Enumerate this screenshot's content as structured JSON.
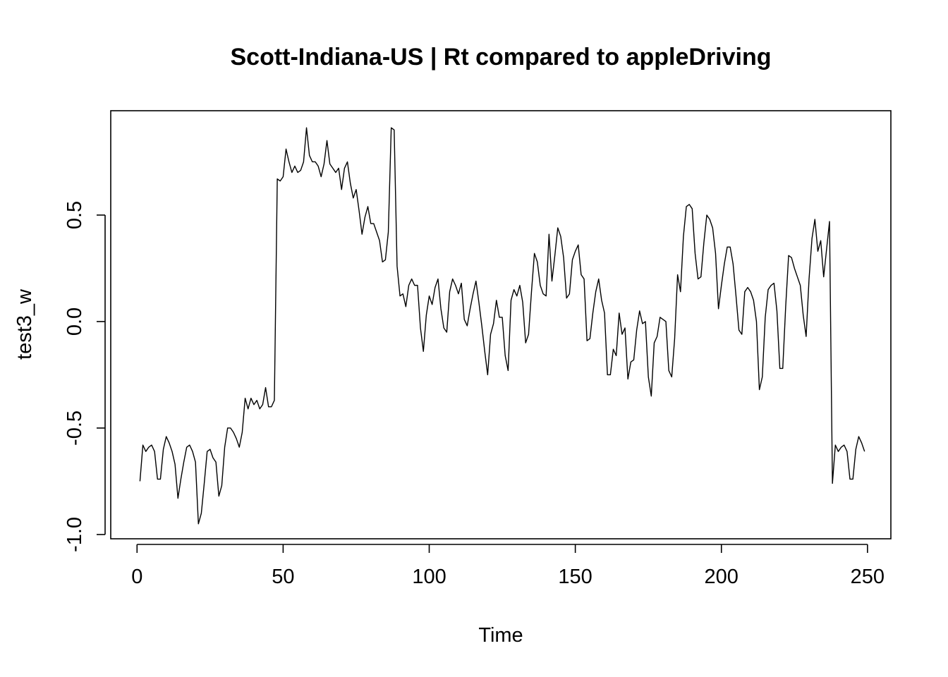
{
  "chart_data": {
    "type": "line",
    "title": "Scott-Indiana-US | Rt compared to appleDriving",
    "xlabel": "Time",
    "ylabel": "test3_w",
    "xlim": [
      -9,
      258
    ],
    "ylim": [
      -1.02,
      0.99
    ],
    "x_ticks": [
      0,
      50,
      100,
      150,
      200,
      250
    ],
    "x_tick_labels": [
      "0",
      "50",
      "100",
      "150",
      "200",
      "250"
    ],
    "y_ticks": [
      -1.0,
      -0.5,
      0.0,
      0.5
    ],
    "y_tick_labels": [
      "-1.0",
      "-0.5",
      "0.0",
      "0.5"
    ],
    "grid": false,
    "legend": "none",
    "line_color": "#000000",
    "series": [
      {
        "x_start": 1,
        "x_step": 1,
        "values": [
          -0.75,
          -0.58,
          -0.61,
          -0.59,
          -0.58,
          -0.61,
          -0.74,
          -0.74,
          -0.6,
          -0.54,
          -0.57,
          -0.61,
          -0.67,
          -0.83,
          -0.74,
          -0.66,
          -0.59,
          -0.58,
          -0.61,
          -0.66,
          -0.95,
          -0.9,
          -0.76,
          -0.61,
          -0.6,
          -0.64,
          -0.66,
          -0.82,
          -0.77,
          -0.59,
          -0.5,
          -0.5,
          -0.52,
          -0.55,
          -0.59,
          -0.52,
          -0.36,
          -0.41,
          -0.36,
          -0.39,
          -0.37,
          -0.41,
          -0.39,
          -0.31,
          -0.4,
          -0.4,
          -0.37,
          0.67,
          0.66,
          0.68,
          0.81,
          0.75,
          0.7,
          0.73,
          0.7,
          0.71,
          0.75,
          0.91,
          0.78,
          0.75,
          0.75,
          0.73,
          0.68,
          0.74,
          0.85,
          0.74,
          0.72,
          0.7,
          0.72,
          0.62,
          0.72,
          0.75,
          0.65,
          0.58,
          0.62,
          0.52,
          0.41,
          0.49,
          0.54,
          0.46,
          0.46,
          0.42,
          0.38,
          0.28,
          0.29,
          0.42,
          0.91,
          0.9,
          0.26,
          0.12,
          0.13,
          0.07,
          0.17,
          0.2,
          0.17,
          0.17,
          -0.03,
          -0.14,
          0.03,
          0.12,
          0.08,
          0.16,
          0.2,
          0.06,
          -0.03,
          -0.05,
          0.14,
          0.2,
          0.17,
          0.13,
          0.18,
          0.01,
          -0.02,
          0.06,
          0.13,
          0.19,
          0.09,
          -0.02,
          -0.14,
          -0.25,
          -0.06,
          -0.01,
          0.1,
          0.02,
          0.02,
          -0.16,
          -0.23,
          0.1,
          0.15,
          0.12,
          0.17,
          0.09,
          -0.1,
          -0.06,
          0.14,
          0.32,
          0.28,
          0.17,
          0.13,
          0.12,
          0.41,
          0.19,
          0.31,
          0.44,
          0.4,
          0.3,
          0.11,
          0.13,
          0.29,
          0.33,
          0.36,
          0.22,
          0.2,
          -0.09,
          -0.08,
          0.04,
          0.14,
          0.2,
          0.1,
          0.04,
          -0.25,
          -0.25,
          -0.13,
          -0.16,
          0.04,
          -0.06,
          -0.03,
          -0.27,
          -0.19,
          -0.18,
          -0.04,
          0.05,
          -0.01,
          0.0,
          -0.26,
          -0.35,
          -0.1,
          -0.07,
          0.02,
          0.01,
          0.0,
          -0.23,
          -0.26,
          -0.08,
          0.22,
          0.14,
          0.4,
          0.54,
          0.55,
          0.53,
          0.32,
          0.2,
          0.21,
          0.37,
          0.5,
          0.48,
          0.44,
          0.32,
          0.06,
          0.17,
          0.27,
          0.35,
          0.35,
          0.27,
          0.12,
          -0.04,
          -0.06,
          0.14,
          0.16,
          0.14,
          0.1,
          0.0,
          -0.32,
          -0.26,
          0.02,
          0.15,
          0.17,
          0.18,
          0.05,
          -0.22,
          -0.22,
          0.07,
          0.31,
          0.3,
          0.25,
          0.21,
          0.17,
          0.03,
          -0.07,
          0.2,
          0.39,
          0.48,
          0.33,
          0.38,
          0.21,
          0.34,
          0.47,
          -0.76,
          -0.58,
          -0.61,
          -0.59,
          -0.58,
          -0.61,
          -0.74,
          -0.74,
          -0.6,
          -0.54,
          -0.57,
          -0.61
        ]
      }
    ]
  }
}
